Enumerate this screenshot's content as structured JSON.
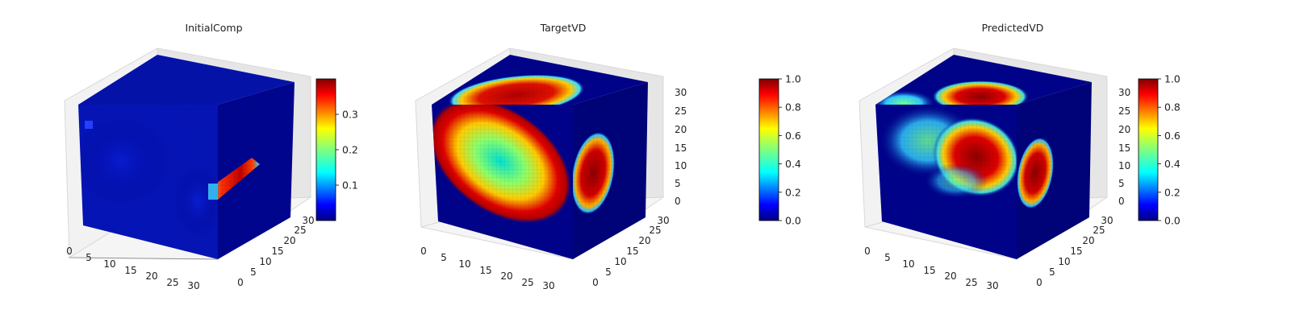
{
  "chart_data": [
    {
      "type": "3d-voxel",
      "title": "InitialComp",
      "axis_x_ticks": [
        "0",
        "5",
        "10",
        "15",
        "20",
        "25",
        "30"
      ],
      "axis_y_ticks": [
        "0",
        "5",
        "10",
        "15",
        "20",
        "25",
        "30"
      ],
      "axis_z_ticks": [],
      "colorbar": {
        "colormap": "jet",
        "min": 0.0,
        "max": 0.4,
        "ticks": [
          "0.1",
          "0.2",
          "0.3"
        ],
        "tick_values": [
          0.1,
          0.2,
          0.3
        ]
      }
    },
    {
      "type": "3d-voxel",
      "title": "TargetVD",
      "axis_x_ticks": [
        "0",
        "5",
        "10",
        "15",
        "20",
        "25",
        "30"
      ],
      "axis_y_ticks": [
        "0",
        "5",
        "10",
        "15",
        "20",
        "25",
        "30"
      ],
      "axis_z_ticks": [
        "0",
        "5",
        "10",
        "15",
        "20",
        "25",
        "30"
      ],
      "colorbar": {
        "colormap": "jet",
        "min": 0.0,
        "max": 1.0,
        "ticks": [
          "0.0",
          "0.2",
          "0.4",
          "0.6",
          "0.8",
          "1.0"
        ],
        "tick_values": [
          0.0,
          0.2,
          0.4,
          0.6,
          0.8,
          1.0
        ]
      }
    },
    {
      "type": "3d-voxel",
      "title": "PredictedVD",
      "axis_x_ticks": [
        "0",
        "5",
        "10",
        "15",
        "20",
        "25",
        "30"
      ],
      "axis_y_ticks": [
        "0",
        "5",
        "10",
        "15",
        "20",
        "25",
        "30"
      ],
      "axis_z_ticks": [
        "0",
        "5",
        "10",
        "15",
        "20",
        "25",
        "30"
      ],
      "colorbar": {
        "colormap": "jet",
        "min": 0.0,
        "max": 1.0,
        "ticks": [
          "0.0",
          "0.2",
          "0.4",
          "0.6",
          "0.8",
          "1.0"
        ],
        "tick_values": [
          0.0,
          0.2,
          0.4,
          0.6,
          0.8,
          1.0
        ]
      }
    }
  ]
}
